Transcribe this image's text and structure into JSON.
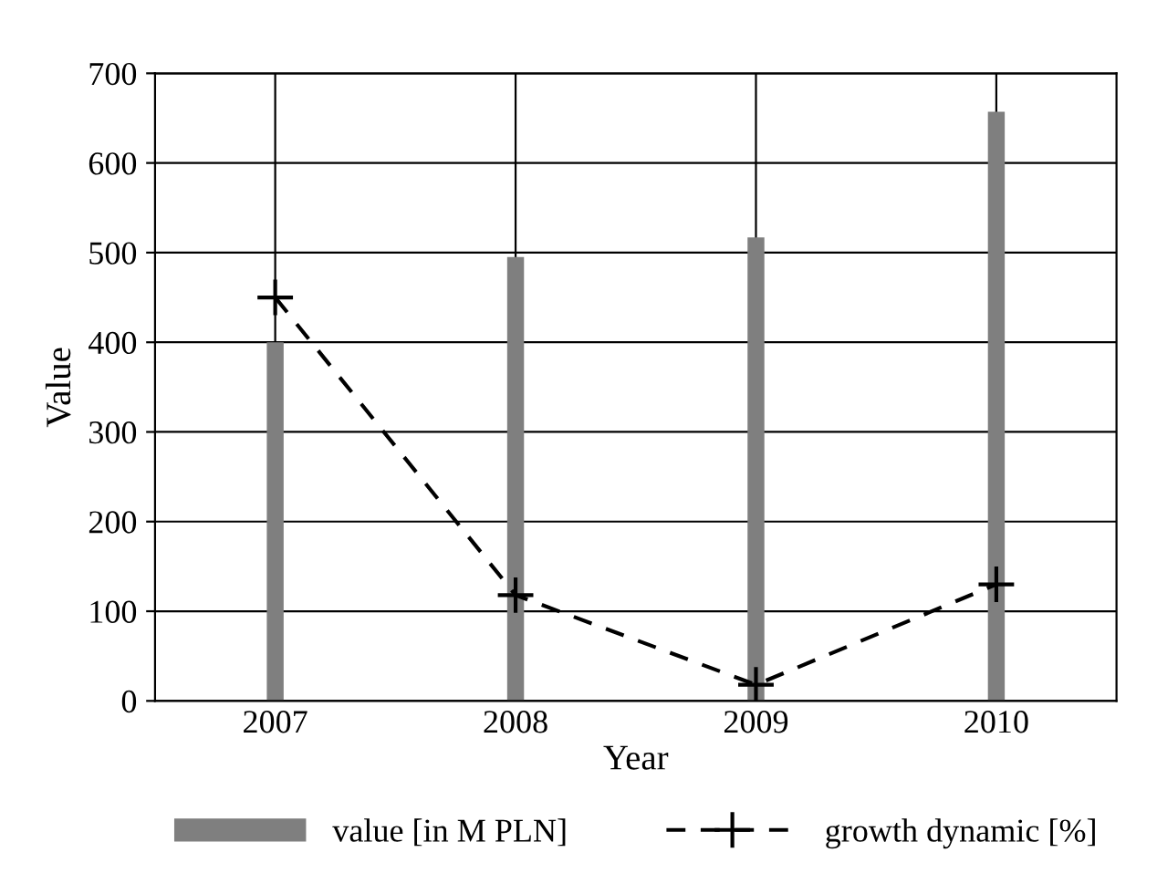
{
  "chart_data": {
    "type": "bar",
    "categories": [
      "2007",
      "2008",
      "2009",
      "2010"
    ],
    "xlabel": "Year",
    "ylabel": "Value",
    "series": [
      {
        "name": "value [in M PLN]",
        "color": "#7f7f7f",
        "values": [
          400,
          495,
          517,
          657
        ]
      },
      {
        "name": "growth dynamic [%]",
        "type": "line",
        "color": "#000000",
        "line_style": "dashed",
        "marker": "cross",
        "values": [
          450,
          118,
          18,
          130
        ]
      }
    ],
    "ylim": [
      0,
      700
    ],
    "yticks": [
      0,
      100,
      200,
      300,
      400,
      500,
      600,
      700
    ],
    "grid": true,
    "legend": "bottom"
  }
}
